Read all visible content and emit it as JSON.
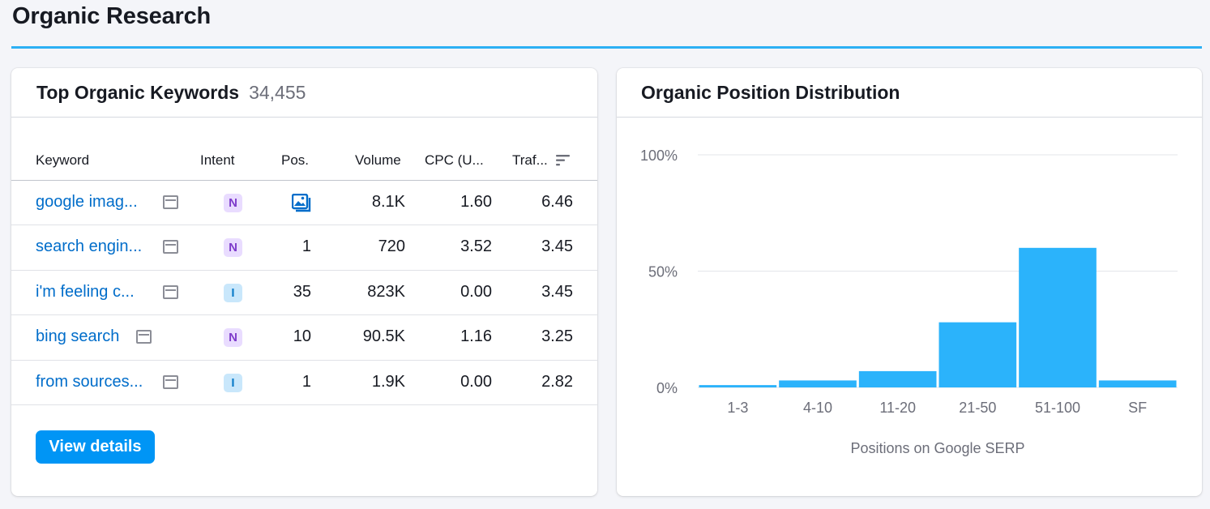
{
  "page": {
    "title": "Organic Research",
    "accent_color": "#2cb0f4"
  },
  "keywords_card": {
    "title": "Top Organic Keywords",
    "count": "34,455",
    "columns": [
      "Keyword",
      "Intent",
      "Pos.",
      "Volume",
      "CPC (U...",
      "Traf..."
    ],
    "sort_icon": "sort-lines-icon",
    "rows": [
      {
        "keyword": "google imag...",
        "intent": "N",
        "pos": "",
        "pos_icon": "image-serp-icon",
        "volume": "8.1K",
        "cpc": "1.60",
        "traffic": "6.46"
      },
      {
        "keyword": "search engin...",
        "intent": "N",
        "pos": "1",
        "volume": "720",
        "cpc": "3.52",
        "traffic": "3.45"
      },
      {
        "keyword": "i'm feeling c...",
        "intent": "I",
        "pos": "35",
        "volume": "823K",
        "cpc": "0.00",
        "traffic": "3.45"
      },
      {
        "keyword": "bing search",
        "intent": "N",
        "pos": "10",
        "volume": "90.5K",
        "cpc": "1.16",
        "traffic": "3.25"
      },
      {
        "keyword": "from sources...",
        "intent": "I",
        "pos": "1",
        "volume": "1.9K",
        "cpc": "0.00",
        "traffic": "2.82"
      }
    ],
    "button_label": "View details",
    "colors": {
      "link": "#006dca",
      "button": "#0095f5",
      "intent_n": "#7e3ccb",
      "intent_i": "#0b7bc8"
    }
  },
  "distribution_card": {
    "title": "Organic Position Distribution"
  },
  "chart_data": {
    "type": "bar",
    "title": "",
    "xlabel": "Positions on Google SERP",
    "ylabel": "",
    "categories": [
      "1-3",
      "4-10",
      "11-20",
      "21-50",
      "51-100",
      "SF"
    ],
    "values": [
      1,
      3,
      7,
      28,
      60,
      3
    ],
    "ylim": [
      0,
      100
    ],
    "yticks": [
      "0%",
      "50%",
      "100%"
    ],
    "ytick_values": [
      0,
      50,
      100
    ],
    "grid": true,
    "color": "#2bb3fb"
  }
}
